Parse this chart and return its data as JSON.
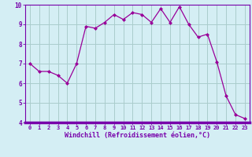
{
  "x": [
    0,
    1,
    2,
    3,
    4,
    5,
    6,
    7,
    8,
    9,
    10,
    11,
    12,
    13,
    14,
    15,
    16,
    17,
    18,
    19,
    20,
    21,
    22,
    23
  ],
  "y": [
    7.0,
    6.6,
    6.6,
    6.4,
    6.0,
    7.0,
    8.9,
    8.8,
    9.1,
    9.5,
    9.25,
    9.6,
    9.5,
    9.1,
    9.8,
    9.1,
    9.9,
    9.0,
    8.35,
    8.5,
    7.1,
    5.35,
    4.4,
    4.2
  ],
  "line_color": "#990099",
  "marker_color": "#990099",
  "bg_color": "#d4eef4",
  "grid_color": "#aacccc",
  "xlabel": "Windchill (Refroidissement éolien,°C)",
  "xlabel_color": "#7700aa",
  "tick_color": "#7700aa",
  "ylim": [
    4,
    10
  ],
  "xlim_min": -0.5,
  "xlim_max": 23.5,
  "yticks": [
    4,
    5,
    6,
    7,
    8,
    9,
    10
  ],
  "xticks": [
    0,
    1,
    2,
    3,
    4,
    5,
    6,
    7,
    8,
    9,
    10,
    11,
    12,
    13,
    14,
    15,
    16,
    17,
    18,
    19,
    20,
    21,
    22,
    23
  ],
  "xtick_labels": [
    "0",
    "1",
    "2",
    "3",
    "4",
    "5",
    "6",
    "7",
    "8",
    "9",
    "10",
    "11",
    "12",
    "13",
    "14",
    "15",
    "16",
    "17",
    "18",
    "19",
    "20",
    "21",
    "22",
    "23"
  ],
  "spine_color": "#7700aa",
  "bottom_bar_color": "#7700aa"
}
